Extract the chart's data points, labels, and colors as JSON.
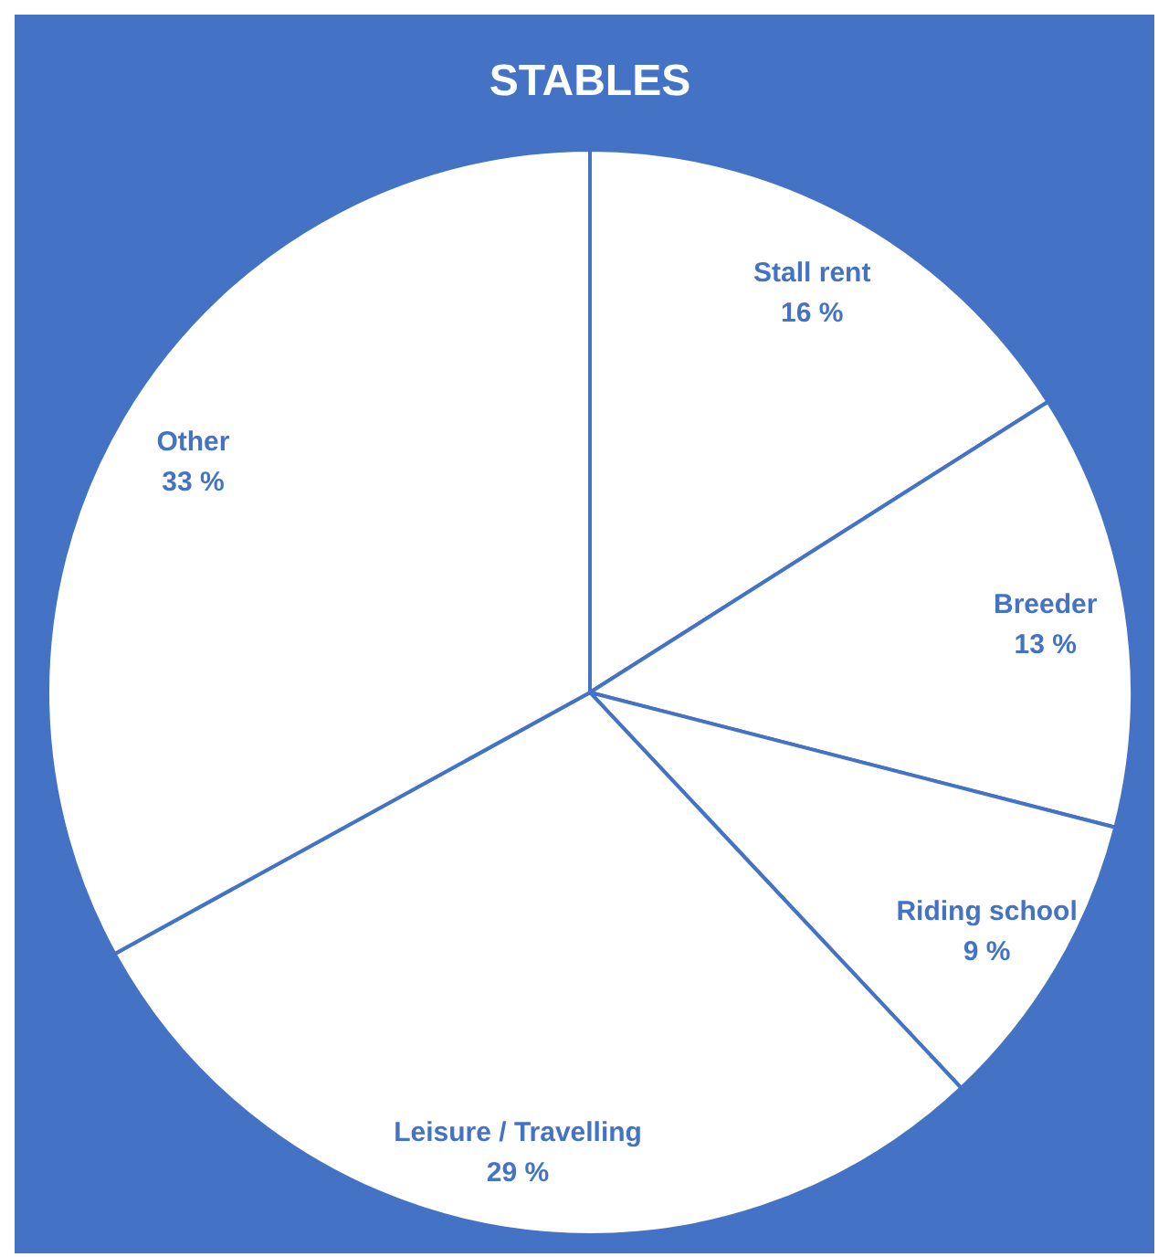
{
  "chart_data": {
    "type": "pie",
    "title": "STABLES",
    "categories": [
      "Stall rent",
      "Breeder",
      "Riding school",
      "Leisure / Travelling",
      "Other"
    ],
    "values": [
      16,
      13,
      9,
      29,
      33
    ],
    "value_labels": [
      "16 %",
      "13 %",
      "9 %",
      "29 %",
      "33 %"
    ],
    "colors": [
      "#ffffff",
      "#ffffff",
      "#ffffff",
      "#ffffff",
      "#ffffff"
    ]
  }
}
